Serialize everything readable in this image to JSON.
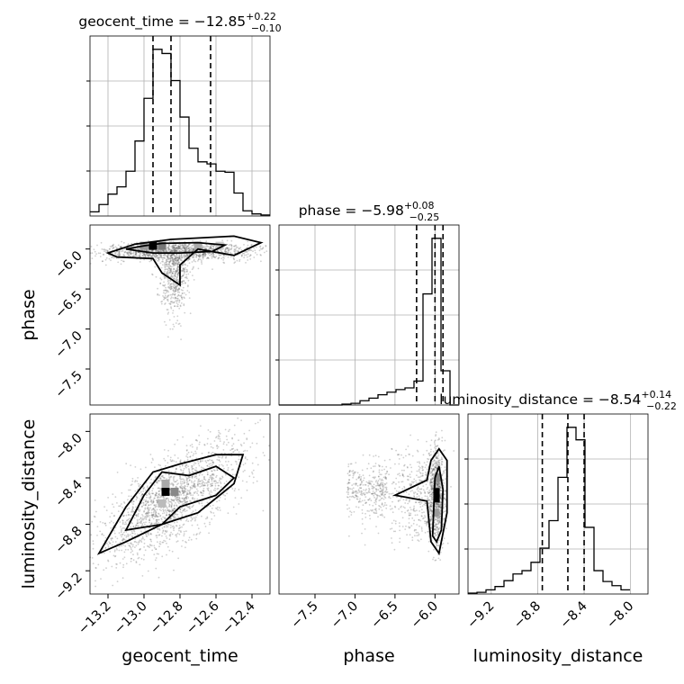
{
  "chart_data": {
    "type": "corner",
    "parameters": [
      "geocent_time",
      "phase",
      "luminosity_distance"
    ],
    "titles": [
      {
        "param": "geocent_time",
        "prefix": "geocent_time = ",
        "median": "−12.85",
        "plus": "+0.22",
        "minus": "−0.10"
      },
      {
        "param": "phase",
        "prefix": "phase = ",
        "median": "−5.98",
        "plus": "+0.08",
        "minus": "−0.25"
      },
      {
        "param": "luminosity_distance",
        "prefix": "luminosity_distance = ",
        "median": "−8.54",
        "plus": "+0.14",
        "minus": "−0.22"
      }
    ],
    "axes": {
      "geocent_time": {
        "range": [
          -13.3,
          -12.3
        ],
        "ticks": [
          -13.2,
          -13.0,
          -12.8,
          -12.6,
          -12.4
        ],
        "tick_labels": [
          "−13.2",
          "−13.0",
          "−12.8",
          "−12.6",
          "−12.4"
        ]
      },
      "phase": {
        "range": [
          -7.95,
          -5.7
        ],
        "ticks": [
          -7.5,
          -7.0,
          -6.5,
          -6.0
        ],
        "tick_labels": [
          "−7.5",
          "−7.0",
          "−6.5",
          "−6.0"
        ]
      },
      "luminosity_distance": {
        "range": [
          -9.4,
          -7.85
        ],
        "ticks": [
          -9.2,
          -8.8,
          -8.4,
          -8.0
        ],
        "tick_labels": [
          "−9.2",
          "−8.8",
          "−8.4",
          "−8.0"
        ]
      }
    },
    "histograms": {
      "geocent_time": {
        "bin_edges": [
          -13.3,
          -13.25,
          -13.2,
          -13.15,
          -13.1,
          -13.05,
          -13.0,
          -12.95,
          -12.9,
          -12.85,
          -12.8,
          -12.75,
          -12.7,
          -12.65,
          -12.6,
          -12.55,
          -12.5,
          -12.45,
          -12.4,
          -12.35,
          -12.3
        ],
        "counts": [
          4,
          11,
          21,
          28,
          43,
          72,
          113,
          160,
          156,
          130,
          95,
          65,
          52,
          50,
          43,
          42,
          22,
          5,
          2,
          1
        ],
        "quantile_lines": [
          -12.95,
          -12.85,
          -12.63
        ]
      },
      "phase": {
        "bin_edges": [
          -7.95,
          -7.8375,
          -7.725,
          -7.6125,
          -7.5,
          -7.3875,
          -7.275,
          -7.1625,
          -7.05,
          -6.9375,
          -6.825,
          -6.7125,
          -6.6,
          -6.4875,
          -6.375,
          -6.2625,
          -6.15,
          -6.0375,
          -5.925,
          -5.8125,
          -5.7
        ],
        "counts": [
          0,
          0,
          0,
          0,
          0,
          0,
          0,
          1,
          2,
          5,
          8,
          12,
          15,
          18,
          20,
          28,
          130,
          195,
          40,
          0
        ],
        "quantile_lines": [
          -6.23,
          -6.0,
          -5.9
        ]
      },
      "luminosity_distance": {
        "bin_edges": [
          -9.4,
          -9.3225,
          -9.245,
          -9.1675,
          -9.09,
          -9.0125,
          -8.935,
          -8.8575,
          -8.78,
          -8.7025,
          -8.625,
          -8.5475,
          -8.47,
          -8.3925,
          -8.315,
          -8.2375,
          -8.16,
          -8.0825,
          -8.005
        ],
        "counts": [
          1,
          2,
          5,
          9,
          16,
          24,
          28,
          38,
          55,
          88,
          140,
          200,
          185,
          80,
          28,
          15,
          10,
          5
        ],
        "quantile_lines": [
          -8.76,
          -8.54,
          -8.4
        ]
      }
    }
  }
}
